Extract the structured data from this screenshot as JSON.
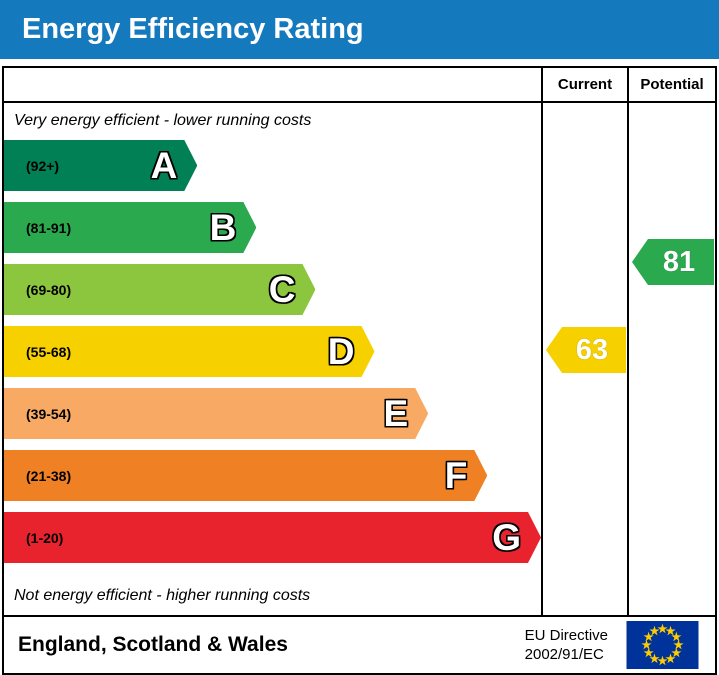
{
  "title": "Energy Efficiency Rating",
  "header": {
    "current_label": "Current",
    "potential_label": "Potential"
  },
  "captions": {
    "top": "Very energy efficient - lower running costs",
    "bottom": "Not energy efficient - higher running costs"
  },
  "chart_data": {
    "type": "bar",
    "title": "Energy Efficiency Rating",
    "bands": [
      {
        "letter": "A",
        "range_label": "(92+)",
        "range": [
          92,
          100
        ],
        "color": "#008054",
        "width_pct": 36
      },
      {
        "letter": "B",
        "range_label": "(81-91)",
        "range": [
          81,
          91
        ],
        "color": "#2ba94e",
        "width_pct": 47
      },
      {
        "letter": "C",
        "range_label": "(69-80)",
        "range": [
          69,
          80
        ],
        "color": "#8cc63f",
        "width_pct": 58
      },
      {
        "letter": "D",
        "range_label": "(55-68)",
        "range": [
          55,
          68
        ],
        "color": "#f7d000",
        "width_pct": 69
      },
      {
        "letter": "E",
        "range_label": "(39-54)",
        "range": [
          39,
          54
        ],
        "color": "#f8aa65",
        "width_pct": 79
      },
      {
        "letter": "F",
        "range_label": "(21-38)",
        "range": [
          21,
          38
        ],
        "color": "#ef8023",
        "width_pct": 90
      },
      {
        "letter": "G",
        "range_label": "(1-20)",
        "range": [
          1,
          20
        ],
        "color": "#e9232e",
        "width_pct": 100
      }
    ],
    "ratings": {
      "current": {
        "value": "63",
        "band": "D",
        "color": "#f7d000"
      },
      "potential": {
        "value": "81",
        "band": "B",
        "color": "#2ba94e"
      }
    }
  },
  "footer": {
    "region": "England, Scotland & Wales",
    "directive_line1": "EU Directive",
    "directive_line2": "2002/91/EC"
  },
  "colors": {
    "title_bar": "#1579bd",
    "flag_blue": "#003399",
    "flag_star": "#ffcc00"
  }
}
